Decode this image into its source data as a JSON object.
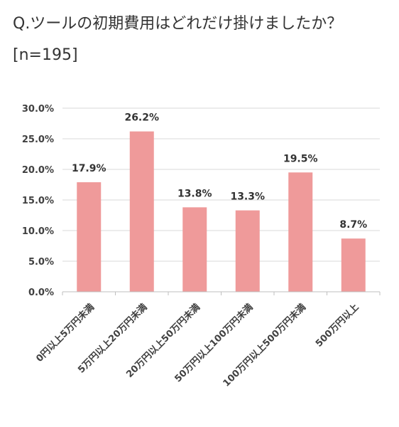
{
  "header": {
    "title": "Q.ツールの初期費用はどれだけ掛けましたか？",
    "subtitle": "[n=195]"
  },
  "colors": {
    "bar": "#ef9a9a",
    "grid": "#d9d9d9",
    "axis": "#bfbfbf"
  },
  "chart_data": {
    "type": "bar",
    "title": "Q.ツールの初期費用はどれだけ掛けましたか？",
    "subtitle": "[n=195]",
    "categories": [
      "0円以上5万円未満",
      "5万円以上20万円未満",
      "20万円以上50万円未満",
      "50万円以上100万円未満",
      "100万円以上500万円未満",
      "500万円以上"
    ],
    "values": [
      17.9,
      26.2,
      13.8,
      13.3,
      19.5,
      8.7
    ],
    "data_labels": [
      "17.9%",
      "26.2%",
      "13.8%",
      "13.3%",
      "19.5%",
      "8.7%"
    ],
    "y_ticks": [
      0,
      5,
      10,
      15,
      20,
      25,
      30
    ],
    "y_tick_labels": [
      "0.0%",
      "5.0%",
      "10.0%",
      "15.0%",
      "20.0%",
      "25.0%",
      "30.0%"
    ],
    "ylim": [
      0,
      30
    ],
    "grid": true,
    "legend": "none"
  }
}
